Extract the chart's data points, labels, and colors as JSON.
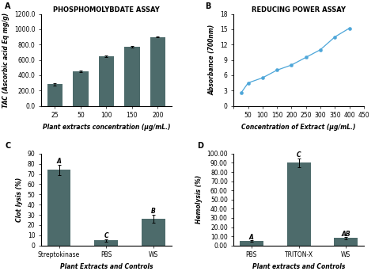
{
  "panel_A": {
    "title": "PHOSPHOMOLYBDATE ASSAY",
    "xlabel": "Plant extracts concentration (μg/mL.)",
    "ylabel": "TAC (Ascorbic acid Eq mg/g)",
    "x": [
      25,
      50,
      100,
      150,
      200
    ],
    "y": [
      280,
      450,
      650,
      770,
      900
    ],
    "yerr": [
      12,
      10,
      10,
      9,
      8
    ],
    "bar_color": "#4d6b6b",
    "ylim": [
      0,
      1200
    ],
    "yticks": [
      0,
      200,
      400,
      600,
      800,
      1000,
      1200
    ],
    "ytick_labels": [
      "0.0",
      "200.0",
      "400.0",
      "600.0",
      "800.0",
      "1000.0",
      "1200.0"
    ]
  },
  "panel_B": {
    "title": "REDUCING POWER ASSAY",
    "xlabel": "Concentration of Extract (μg/mL.)",
    "ylabel": "Absorbance (700nm)",
    "x": [
      25,
      50,
      100,
      150,
      200,
      250,
      300,
      350,
      400
    ],
    "y": [
      2.5,
      4.5,
      5.5,
      7.0,
      8.0,
      9.5,
      11.0,
      13.5,
      15.2
    ],
    "line_color": "#4da6d9",
    "marker": "o",
    "markersize": 3,
    "ylim": [
      0,
      18
    ],
    "yticks": [
      0,
      3,
      6,
      9,
      12,
      15,
      18
    ],
    "xlim": [
      0,
      450
    ],
    "xticks": [
      0,
      50,
      100,
      150,
      200,
      250,
      300,
      350,
      400,
      450
    ]
  },
  "panel_C": {
    "xlabel": "Plant Extracts and Controls",
    "ylabel": "Clot lysis (%)",
    "categories": [
      "Streptokinase",
      "PBS",
      "WS"
    ],
    "y": [
      74,
      5,
      26
    ],
    "yerr": [
      5,
      1,
      4
    ],
    "bar_color": "#4d6b6b",
    "ylim": [
      0,
      90
    ],
    "yticks": [
      0,
      10,
      20,
      30,
      40,
      50,
      60,
      70,
      80,
      90
    ],
    "labels": [
      "A",
      "C",
      "B"
    ]
  },
  "panel_D": {
    "xlabel": "Plant extracts and Controls",
    "ylabel": "Hemolysis (%)",
    "categories": [
      "PBS",
      "TRITON-X",
      "WS"
    ],
    "y": [
      5,
      90,
      8
    ],
    "yerr": [
      0.5,
      5,
      1
    ],
    "bar_color": "#4d6b6b",
    "ylim": [
      0,
      100
    ],
    "yticks": [
      0,
      10,
      20,
      30,
      40,
      50,
      60,
      70,
      80,
      90,
      100
    ],
    "ytick_labels": [
      "0.00",
      "10.00",
      "20.00",
      "30.00",
      "40.00",
      "50.00",
      "60.00",
      "70.00",
      "80.00",
      "90.00",
      "100.00"
    ],
    "labels": [
      "A",
      "C",
      "AB"
    ]
  },
  "background_color": "#ffffff",
  "font_size": 5.5,
  "title_font_size": 6,
  "label_font_size": 7
}
